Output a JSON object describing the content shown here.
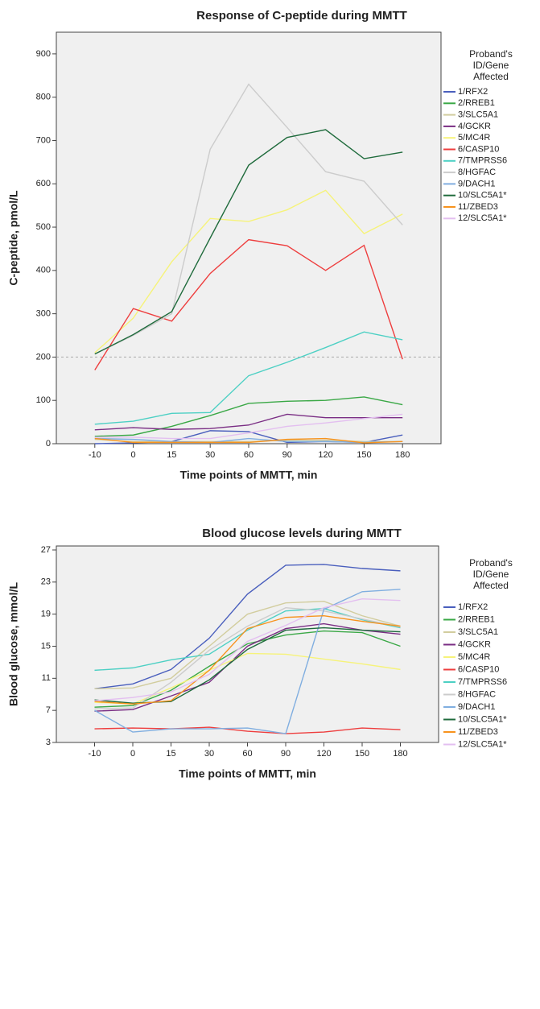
{
  "chart_data": [
    {
      "type": "line",
      "title": "Response of C-peptide during MMTT",
      "x_label": "Time points of MMTT, min",
      "y_label": "C-peptide, pmol/L",
      "legend_title": [
        "Proband's",
        "ID/Gene",
        "Affected"
      ],
      "categories": [
        "-10",
        "0",
        "15",
        "30",
        "60",
        "90",
        "120",
        "150",
        "180"
      ],
      "ylim": [
        0,
        950
      ],
      "yticks": [
        0,
        100,
        200,
        300,
        400,
        500,
        600,
        700,
        800,
        900
      ],
      "reference_line": 200,
      "series": [
        {
          "name": "1/RFX2",
          "color": "#4a5fbd",
          "values": [
            0,
            2,
            5,
            30,
            28,
            3,
            5,
            3,
            20
          ]
        },
        {
          "name": "2/RREB1",
          "color": "#3aa846",
          "values": [
            17,
            20,
            40,
            65,
            93,
            98,
            100,
            108,
            90
          ]
        },
        {
          "name": "3/SLC5A1",
          "color": "#d2cd9e",
          "values": [
            10,
            5,
            5,
            5,
            5,
            8,
            8,
            5,
            5
          ]
        },
        {
          "name": "4/GCKR",
          "color": "#7a2e84",
          "values": [
            32,
            37,
            33,
            35,
            43,
            68,
            60,
            60,
            60
          ]
        },
        {
          "name": "5/MC4R",
          "color": "#f6f37a",
          "values": [
            210,
            290,
            420,
            520,
            513,
            540,
            585,
            485,
            530
          ]
        },
        {
          "name": "6/CASP10",
          "color": "#ee3e3e",
          "values": [
            170,
            312,
            283,
            393,
            471,
            457,
            400,
            458,
            195
          ]
        },
        {
          "name": "7/TMPRSS6",
          "color": "#4dd0c4",
          "values": [
            45,
            52,
            70,
            72,
            157,
            188,
            222,
            258,
            240
          ]
        },
        {
          "name": "8/HGFAC",
          "color": "#cccccc",
          "values": [
            207,
            250,
            300,
            680,
            830,
            730,
            628,
            606,
            505
          ]
        },
        {
          "name": "9/DACH1",
          "color": "#80aee0",
          "values": [
            12,
            10,
            5,
            3,
            12,
            5,
            5,
            3,
            5
          ]
        },
        {
          "name": "10/SLC5A1*",
          "color": "#1f6b3c",
          "values": [
            207,
            252,
            305,
            475,
            643,
            707,
            725,
            658,
            673
          ]
        },
        {
          "name": "11/ZBED3",
          "color": "#f7931e",
          "values": [
            12,
            3,
            3,
            3,
            3,
            10,
            12,
            2,
            5
          ]
        },
        {
          "name": "12/SLC5A1*",
          "color": "#e3bff0",
          "values": [
            15,
            15,
            12,
            12,
            25,
            40,
            48,
            58,
            68
          ]
        }
      ]
    },
    {
      "type": "line",
      "title": "Blood glucose levels during MMTT",
      "x_label": "Time points of MMTT, min",
      "y_label": "Blood glucose, mmol/L",
      "legend_title": [
        "Proband's",
        "ID/Gene",
        "Affected"
      ],
      "categories": [
        "-10",
        "0",
        "15",
        "30",
        "60",
        "90",
        "120",
        "150",
        "180"
      ],
      "ylim": [
        3,
        27.5
      ],
      "yticks": [
        3,
        7,
        11,
        15,
        19,
        23,
        27
      ],
      "series": [
        {
          "name": "1/RFX2",
          "color": "#4a5fbd",
          "values": [
            9.7,
            10.3,
            12.1,
            16,
            21.5,
            25.1,
            25.2,
            24.7,
            24.4
          ]
        },
        {
          "name": "2/RREB1",
          "color": "#3aa846",
          "values": [
            7.4,
            7.6,
            9.5,
            12.5,
            15.3,
            16.4,
            16.9,
            16.7,
            15
          ]
        },
        {
          "name": "3/SLC5A1",
          "color": "#d2cd9e",
          "values": [
            9.7,
            9.8,
            11,
            15,
            19,
            20.4,
            20.6,
            18.8,
            17.5
          ]
        },
        {
          "name": "4/GCKR",
          "color": "#7a2e84",
          "values": [
            6.9,
            7.1,
            8.8,
            10.5,
            15,
            17.2,
            17.8,
            17,
            16.5
          ]
        },
        {
          "name": "5/MC4R",
          "color": "#f6f37a",
          "values": [
            8,
            7.8,
            9.8,
            12,
            14.1,
            14,
            13.4,
            12.8,
            12.1
          ]
        },
        {
          "name": "6/CASP10",
          "color": "#ee3e3e",
          "values": [
            4.7,
            4.8,
            4.7,
            4.9,
            4.4,
            4.1,
            4.3,
            4.8,
            4.6
          ]
        },
        {
          "name": "7/TMPRSS6",
          "color": "#4dd0c4",
          "values": [
            12,
            12.3,
            13.3,
            14,
            17,
            19.4,
            19.7,
            18.3,
            17.3
          ]
        },
        {
          "name": "8/HGFAC",
          "color": "#cccccc",
          "values": [
            7.2,
            7.3,
            10.5,
            14.5,
            17.5,
            19.8,
            19.4,
            18.4,
            17.4
          ]
        },
        {
          "name": "9/DACH1",
          "color": "#80aee0",
          "values": [
            7,
            4.3,
            4.7,
            4.7,
            4.8,
            4.1,
            19.6,
            21.8,
            22.1
          ]
        },
        {
          "name": "10/SLC5A1*",
          "color": "#1f6b3c",
          "values": [
            8.3,
            7.9,
            8.1,
            10.8,
            14.6,
            17,
            17.3,
            17,
            16.8
          ]
        },
        {
          "name": "11/ZBED3",
          "color": "#f7931e",
          "values": [
            8.1,
            7.8,
            8.2,
            12,
            17.2,
            18.6,
            18.8,
            18.1,
            17.5
          ]
        },
        {
          "name": "12/SLC5A1*",
          "color": "#e3bff0",
          "values": [
            8.2,
            8.6,
            9.3,
            11.5,
            15.6,
            17.6,
            19.8,
            20.9,
            20.7
          ]
        }
      ]
    }
  ]
}
